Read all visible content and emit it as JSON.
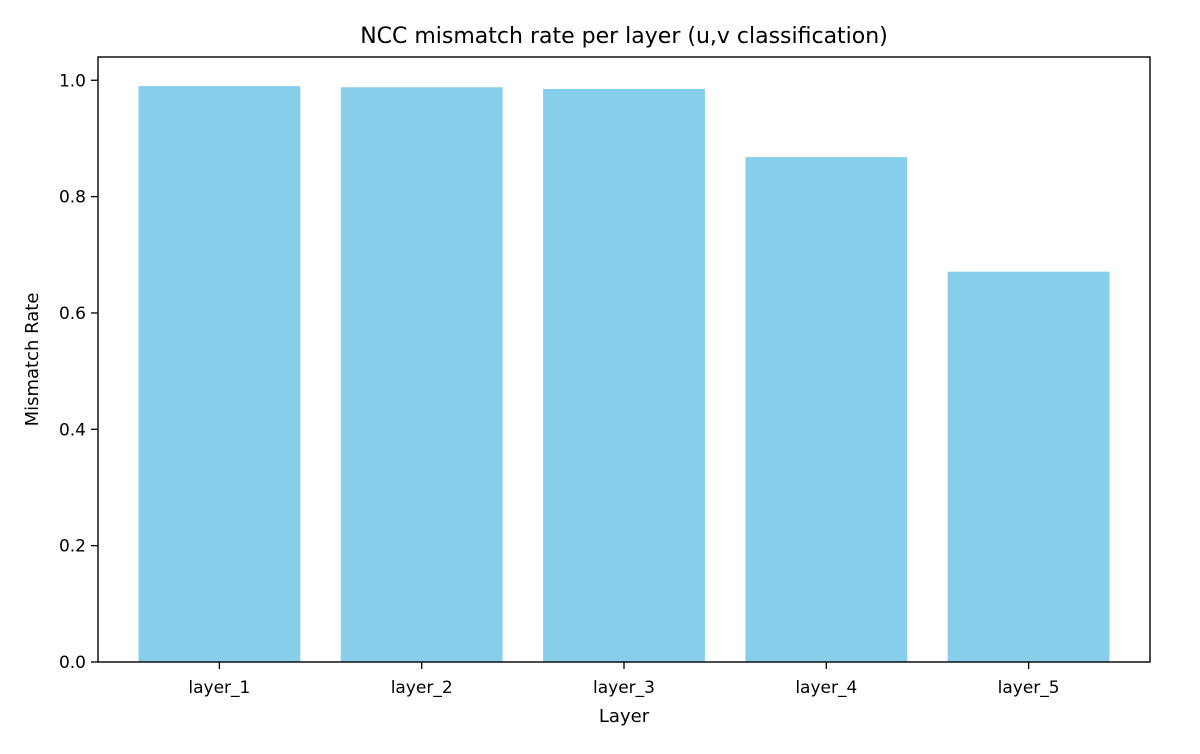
{
  "chart_data": {
    "type": "bar",
    "title": "NCC mismatch rate per layer (u,v classification)",
    "xlabel": "Layer",
    "ylabel": "Mismatch Rate",
    "categories": [
      "layer_1",
      "layer_2",
      "layer_3",
      "layer_4",
      "layer_5"
    ],
    "values": [
      0.99,
      0.988,
      0.985,
      0.868,
      0.671
    ],
    "ylim": [
      0,
      1.04
    ],
    "yticks": [
      0.0,
      0.2,
      0.4,
      0.6,
      0.8,
      1.0
    ],
    "ytick_labels": [
      "0.0",
      "0.2",
      "0.4",
      "0.6",
      "0.8",
      "1.0"
    ],
    "grid": false,
    "legend": "none",
    "colors": {
      "bar": "#87ceeb",
      "axes": "#000000",
      "background": "#ffffff"
    }
  }
}
